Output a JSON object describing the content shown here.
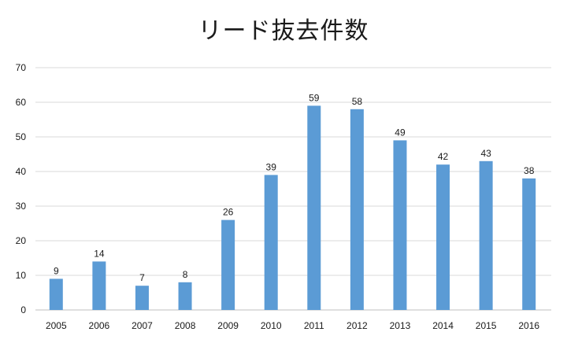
{
  "chart_data": {
    "type": "bar",
    "title": "リード抜去件数",
    "categories": [
      "2005",
      "2006",
      "2007",
      "2008",
      "2009",
      "2010",
      "2011",
      "2012",
      "2013",
      "2014",
      "2015",
      "2016"
    ],
    "values": [
      9,
      14,
      7,
      8,
      26,
      39,
      59,
      58,
      49,
      42,
      43,
      38
    ],
    "yticks": [
      0,
      10,
      20,
      30,
      40,
      50,
      60,
      70
    ],
    "ylim": [
      0,
      70
    ],
    "grid": true,
    "bar_color": "#5b9bd5"
  }
}
